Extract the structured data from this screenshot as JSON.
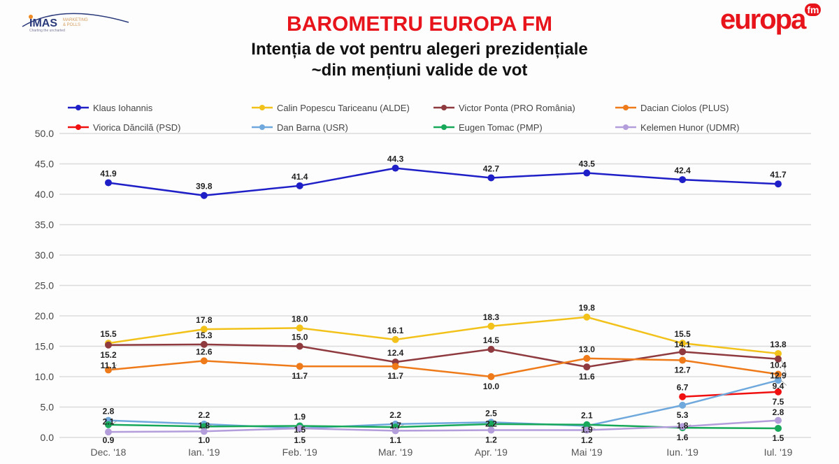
{
  "header": {
    "title": "BAROMETRU EUROPA FM",
    "subtitle_line1": "Intenția de vot pentru alegeri prezidențiale",
    "subtitle_line2": "~din mențiuni valide de vot"
  },
  "logos": {
    "imas": "IMAS MARKETING & POLLS",
    "imas_tagline": "Charting the uncharted",
    "europa": "europa",
    "europa_fm": "fm"
  },
  "chart_data": {
    "type": "line",
    "title": "",
    "xlabel": "",
    "ylabel": "",
    "ylim": [
      0,
      50
    ],
    "yticks": [
      "0.0",
      "5.0",
      "10.0",
      "15.0",
      "20.0",
      "25.0",
      "30.0",
      "35.0",
      "40.0",
      "45.0",
      "50.0"
    ],
    "grid": true,
    "legend_placement": "top",
    "categories": [
      "Dec. '18",
      "Ian. '19",
      "Feb. '19",
      "Mar. '19",
      "Apr. '19",
      "Mai '19",
      "Iun. '19",
      "Iul. '19"
    ],
    "series": [
      {
        "name": "Klaus Iohannis",
        "color": "#1f1fc8",
        "values": [
          41.9,
          39.8,
          41.4,
          44.3,
          42.7,
          43.5,
          42.4,
          41.7
        ]
      },
      {
        "name": "Calin Popescu Tariceanu (ALDE)",
        "color": "#f2c21b",
        "values": [
          15.5,
          17.8,
          18.0,
          16.1,
          18.3,
          19.8,
          15.5,
          13.8
        ]
      },
      {
        "name": "Victor Ponta (PRO România)",
        "color": "#8e3a3f",
        "values": [
          15.2,
          15.3,
          15.0,
          12.4,
          14.5,
          11.6,
          14.1,
          12.9
        ]
      },
      {
        "name": "Dacian Ciolos (PLUS)",
        "color": "#ee7a1a",
        "values": [
          11.1,
          12.6,
          11.7,
          11.7,
          10.0,
          13.0,
          12.7,
          10.4
        ]
      },
      {
        "name": "Viorica Dăncilă (PSD)",
        "color": "#f01010",
        "values": [
          null,
          null,
          null,
          null,
          null,
          null,
          6.7,
          7.5
        ]
      },
      {
        "name": "Dan Barna (USR)",
        "color": "#6fa8dc",
        "values": [
          2.8,
          2.2,
          1.5,
          2.2,
          2.5,
          1.9,
          5.3,
          9.4
        ]
      },
      {
        "name": "Eugen Tomac (PMP)",
        "color": "#17a85a",
        "values": [
          2.1,
          1.8,
          1.9,
          1.7,
          2.2,
          2.1,
          1.6,
          1.5
        ]
      },
      {
        "name": "Kelemen Hunor (UDMR)",
        "color": "#b39ddb",
        "values": [
          0.9,
          1.0,
          1.5,
          1.1,
          1.2,
          1.2,
          1.8,
          2.8
        ]
      }
    ]
  }
}
